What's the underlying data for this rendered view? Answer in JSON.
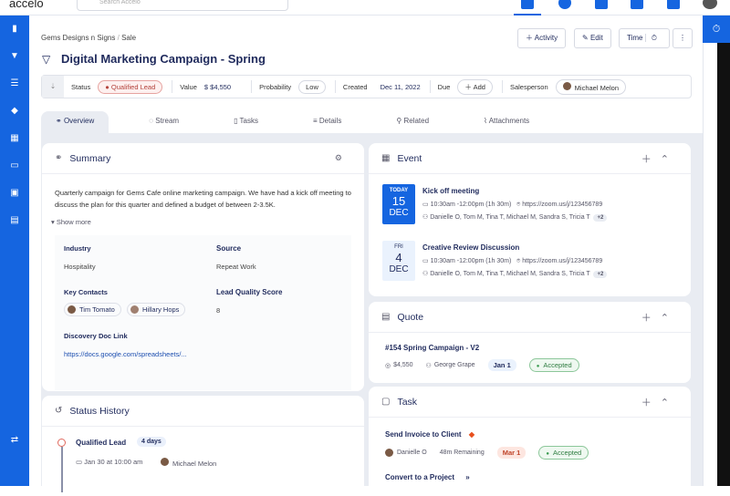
{
  "app": {
    "logo": "accelo",
    "search_placeholder": "Search Accelo"
  },
  "breadcrumb": {
    "company": "Gems Designs n Signs",
    "section": "Sale"
  },
  "title": "Digital Marketing Campaign - Spring",
  "actions": {
    "activity": "Activity",
    "edit": "Edit",
    "time": "Time"
  },
  "meta": {
    "status_label": "Status",
    "status": "Qualified Lead",
    "value_label": "Value",
    "value": "$ $4,550",
    "probability_label": "Probability",
    "probability": "Low",
    "created_label": "Created",
    "created": "Dec 11, 2022",
    "due_label": "Due",
    "due_add": "Add",
    "salesperson_label": "Salesperson",
    "salesperson": "Michael Melon"
  },
  "tabs": [
    "Overview",
    "Stream",
    "Tasks",
    "Details",
    "Related",
    "Attachments"
  ],
  "summary": {
    "title": "Summary",
    "text": "Quarterly campaign for Gems Cafe online marketing campaign. We have had a kick off meeting to discuss the plan for this quarter and defined a budget of between 2-3.5K.",
    "show_more": "Show more",
    "industry_label": "Industry",
    "industry": "Hospitality",
    "source_label": "Source",
    "source": "Repeat Work",
    "contacts_label": "Key Contacts",
    "contacts": [
      "Tim Tomato",
      "Hillary Hops"
    ],
    "score_label": "Lead Quality Score",
    "score": "8",
    "doc_label": "Discovery Doc Link",
    "doc": "https://docs.google.com/spreadsheets/..."
  },
  "status_history": {
    "title": "Status History",
    "items": [
      {
        "status": "Qualified Lead",
        "duration": "4 days",
        "date": "Jan 30 at 10:00 am",
        "user": "Michael Melon"
      }
    ]
  },
  "event": {
    "title": "Event",
    "items": [
      {
        "day_label": "TODAY",
        "day": "15",
        "month": "DEC",
        "name": "Kick off meeting",
        "time": "10:30am -12:00pm  (1h 30m)",
        "link": "https://zoom.us/j/123456789",
        "attendees": "Danielle O, Tom M, Tina T, Michael M, Sandra S, Tricia T",
        "more": "+2"
      },
      {
        "day_label": "FRI",
        "day": "4",
        "month": "DEC",
        "name": "Creative Review Discussion",
        "time": "10:30am -12:00pm  (1h 30m)",
        "link": "https://zoom.us/j/123456789",
        "attendees": "Danielle O, Tom M, Tina T, Michael M, Sandra S, Tricia T",
        "more": "+2"
      }
    ]
  },
  "quote": {
    "title": "Quote",
    "name": "#154 Spring Campaign - V2",
    "amount": "$4,550",
    "contact": "George Grape",
    "date": "Jan 1",
    "status": "Accepted"
  },
  "task": {
    "title": "Task",
    "items": [
      {
        "name": "Send Invoice to Client",
        "assignee": "Danielle O",
        "remaining": "48m Remaining",
        "date": "Mar 1",
        "status": "Accepted"
      }
    ],
    "convert": "Convert to a Project"
  },
  "colors": {
    "brand": "#1565e0",
    "status_red": "#b3423b",
    "accepted_green": "#3a9b50"
  }
}
